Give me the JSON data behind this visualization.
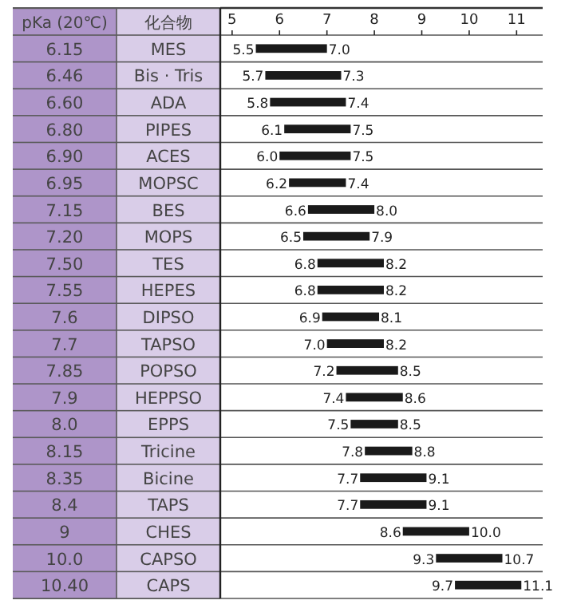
{
  "chart_data": {
    "type": "bar",
    "orientation": "horizontal",
    "color": "#1a1a1a",
    "categories": [
      "MES",
      "Bis · Tris",
      "ADA",
      "PIPES",
      "ACES",
      "MOPSC",
      "BES",
      "MOPS",
      "TES",
      "HEPES",
      "DIPSO",
      "TAPSO",
      "POPSO",
      "HEPPSO",
      "EPPS",
      "Tricine",
      "Bicine",
      "TAPS",
      "CHES",
      "CAPSO",
      "CAPS"
    ],
    "base": [
      5.5,
      5.7,
      5.8,
      6.1,
      6.0,
      6.2,
      6.6,
      6.5,
      6.8,
      6.8,
      6.9,
      7.0,
      7.2,
      7.4,
      7.5,
      7.8,
      7.7,
      7.7,
      8.6,
      9.3,
      9.7
    ],
    "values": [
      1.5,
      1.6,
      1.6,
      1.4,
      1.5,
      1.2,
      1.4,
      1.4,
      1.4,
      1.4,
      1.2,
      1.2,
      1.3,
      1.2,
      1.0,
      1.0,
      1.4,
      1.4,
      1.4,
      1.4,
      1.4
    ],
    "xlim": [
      4.75,
      11.55
    ],
    "xticks": [
      5,
      6,
      7,
      8,
      9,
      10,
      11
    ],
    "annotations": [
      "pKa (20℃)",
      "化合物",
      "6.15",
      "6.46",
      "6.60",
      "6.80",
      "6.90",
      "6.95",
      "7.15",
      "7.20",
      "7.50",
      "7.55",
      "7.6",
      "7.7",
      "7.85",
      "7.9",
      "8.0",
      "8.15",
      "8.35",
      "8.4",
      "9",
      "10.0",
      "10.40",
      {
        "text": "5.5",
        "x": 5.5,
        "y": "MES"
      },
      {
        "text": "7.0",
        "x": 7.0,
        "y": "MES"
      },
      {
        "text": "5.7",
        "x": 5.7,
        "y": "Bis · Tris"
      },
      {
        "text": "7.3",
        "x": 7.3,
        "y": "Bis · Tris"
      },
      {
        "text": "5.8",
        "x": 5.8,
        "y": "ADA"
      },
      {
        "text": "7.4",
        "x": 7.4,
        "y": "ADA"
      },
      {
        "text": "6.1",
        "x": 6.1,
        "y": "PIPES"
      },
      {
        "text": "7.5",
        "x": 7.5,
        "y": "PIPES"
      },
      {
        "text": "6.0",
        "x": 6.0,
        "y": "ACES"
      },
      {
        "text": "7.5",
        "x": 7.5,
        "y": "ACES"
      },
      {
        "text": "6.2",
        "x": 6.2,
        "y": "MOPSC"
      },
      {
        "text": "7.4",
        "x": 7.4,
        "y": "MOPSC"
      },
      {
        "text": "6.6",
        "x": 6.6,
        "y": "BES"
      },
      {
        "text": "8.0",
        "x": 8.0,
        "y": "BES"
      },
      {
        "text": "6.5",
        "x": 6.5,
        "y": "MOPS"
      },
      {
        "text": "7.9",
        "x": 7.9,
        "y": "MOPS"
      },
      {
        "text": "6.8",
        "x": 6.8,
        "y": "TES"
      },
      {
        "text": "8.2",
        "x": 8.2,
        "y": "TES"
      },
      {
        "text": "6.8",
        "x": 6.8,
        "y": "HEPES"
      },
      {
        "text": "8.2",
        "x": 8.2,
        "y": "HEPES"
      },
      {
        "text": "6.9",
        "x": 6.9,
        "y": "DIPSO"
      },
      {
        "text": "8.1",
        "x": 8.1,
        "y": "DIPSO"
      },
      {
        "text": "7.0",
        "x": 7.0,
        "y": "TAPSO"
      },
      {
        "text": "8.2",
        "x": 8.2,
        "y": "TAPSO"
      },
      {
        "text": "7.2",
        "x": 7.2,
        "y": "POPSO"
      },
      {
        "text": "8.5",
        "x": 8.5,
        "y": "POPSO"
      },
      {
        "text": "7.4",
        "x": 7.4,
        "y": "HEPPSO"
      },
      {
        "text": "8.6",
        "x": 8.6,
        "y": "HEPPSO"
      },
      {
        "text": "7.5",
        "x": 7.5,
        "y": "EPPS"
      },
      {
        "text": "8.5",
        "x": 8.5,
        "y": "EPPS"
      },
      {
        "text": "7.8",
        "x": 7.8,
        "y": "Tricine"
      },
      {
        "text": "8.8",
        "x": 8.8,
        "y": "Tricine"
      },
      {
        "text": "7.7",
        "x": 7.7,
        "y": "Bicine"
      },
      {
        "text": "9.1",
        "x": 9.1,
        "y": "Bicine"
      },
      {
        "text": "7.7",
        "x": 7.7,
        "y": "TAPS"
      },
      {
        "text": "9.1",
        "x": 9.1,
        "y": "TAPS"
      },
      {
        "text": "8.6",
        "x": 8.6,
        "y": "CHES"
      },
      {
        "text": "10.0",
        "x": 10.0,
        "y": "CHES"
      },
      {
        "text": "9.3",
        "x": 9.3,
        "y": "CAPSO"
      },
      {
        "text": "10.7",
        "x": 10.7,
        "y": "CAPSO"
      },
      {
        "text": "9.7",
        "x": 9.7,
        "y": "CAPS"
      },
      {
        "text": "11.1",
        "x": 11.1,
        "y": "CAPS"
      }
    ]
  }
}
